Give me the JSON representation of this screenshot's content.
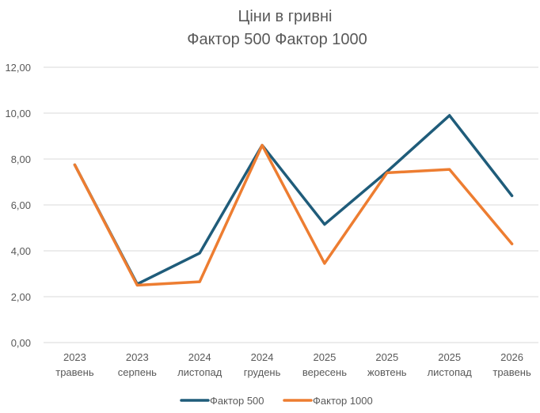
{
  "chart_data": {
    "type": "line",
    "title": "Ціни в гривні",
    "subtitle": "Фактор 500 Фактор 1000",
    "categories": [
      [
        "2023",
        "травень"
      ],
      [
        "2023",
        "серпень"
      ],
      [
        "2024",
        "листопад"
      ],
      [
        "2024",
        "грудень"
      ],
      [
        "2025",
        "вересень"
      ],
      [
        "2025",
        "жовтень"
      ],
      [
        "2025",
        "листопад"
      ],
      [
        "2026",
        "травень"
      ]
    ],
    "series": [
      {
        "name": "Фактор 500",
        "color": "#1f5c7a",
        "values": [
          7.75,
          2.55,
          3.9,
          8.6,
          5.15,
          7.45,
          9.9,
          6.4
        ]
      },
      {
        "name": "Фактор 1000",
        "color": "#ed7d31",
        "values": [
          7.75,
          2.5,
          2.65,
          8.6,
          3.45,
          7.4,
          7.55,
          4.3
        ]
      }
    ],
    "y_ticks": [
      "0,00",
      "2,00",
      "4,00",
      "6,00",
      "8,00",
      "10,00",
      "12,00"
    ],
    "ylim": [
      0,
      12
    ],
    "grid": true,
    "legend_position": "bottom"
  }
}
